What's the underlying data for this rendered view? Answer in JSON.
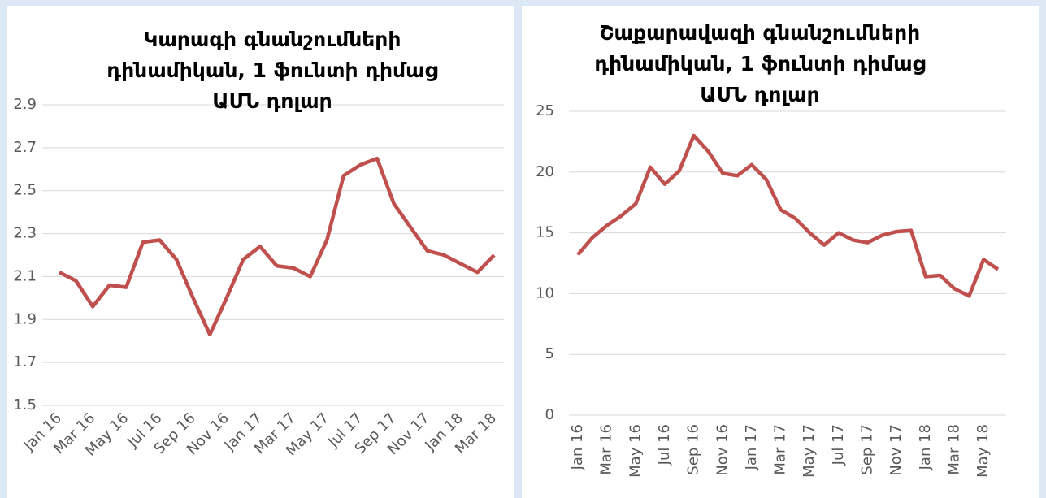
{
  "chart_data": [
    {
      "type": "line",
      "title": [
        "Կարագի գնանշումների",
        "դինամիկան, 1 ֆունտի դիմաց",
        "ԱՄՆ դոլար"
      ],
      "categories": [
        "Jan 16",
        null,
        "Mar 16",
        null,
        "May 16",
        null,
        "Jul 16",
        null,
        "Sep 16",
        null,
        "Nov 16",
        null,
        "Jan 17",
        null,
        "Mar 17",
        null,
        "May 17",
        null,
        "Jul 17",
        null,
        "Sep 17",
        null,
        "Nov 17",
        null,
        "Jan 18",
        null,
        "Mar 18"
      ],
      "values": [
        2.12,
        2.08,
        1.96,
        2.06,
        2.05,
        2.26,
        2.27,
        2.18,
        2.0,
        1.83,
        2.0,
        2.18,
        2.24,
        2.15,
        2.14,
        2.1,
        2.27,
        2.57,
        2.62,
        2.65,
        2.44,
        2.33,
        2.22,
        2.2,
        2.16,
        2.12,
        2.2
      ],
      "color": "#c0504d",
      "ylim": [
        1.5,
        2.9
      ],
      "yticks": [
        1.5,
        1.7,
        1.9,
        2.1,
        2.3,
        2.5,
        2.7,
        2.9
      ],
      "grid": true
    },
    {
      "type": "line",
      "title": [
        "Շաքարավազի գնանշումների",
        "դինամիկան, 1 ֆունտի դիմաց",
        "ԱՄՆ դոլար"
      ],
      "categories": [
        "Jan 16",
        null,
        "Mar 16",
        null,
        "May 16",
        null,
        "Jul 16",
        null,
        "Sep 16",
        null,
        "Nov 16",
        null,
        "Jan 17",
        null,
        "Mar 17",
        null,
        "May 17",
        null,
        "Jul 17",
        null,
        "Sep 17",
        null,
        "Nov 17",
        null,
        "Jan 18",
        null,
        "Mar 18",
        null,
        "May 18",
        null
      ],
      "values": [
        13.2,
        14.6,
        15.6,
        16.4,
        17.4,
        20.4,
        19.0,
        20.1,
        23.0,
        21.7,
        19.9,
        19.7,
        20.6,
        19.4,
        16.9,
        16.2,
        15.0,
        14.0,
        15.0,
        14.4,
        14.2,
        14.8,
        15.1,
        15.2,
        11.4,
        11.5,
        10.4,
        9.8,
        12.8,
        12.0
      ],
      "color": "#c0504d",
      "ylim": [
        0,
        25
      ],
      "yticks": [
        0,
        5,
        10,
        15,
        20,
        25
      ],
      "grid": true
    }
  ]
}
